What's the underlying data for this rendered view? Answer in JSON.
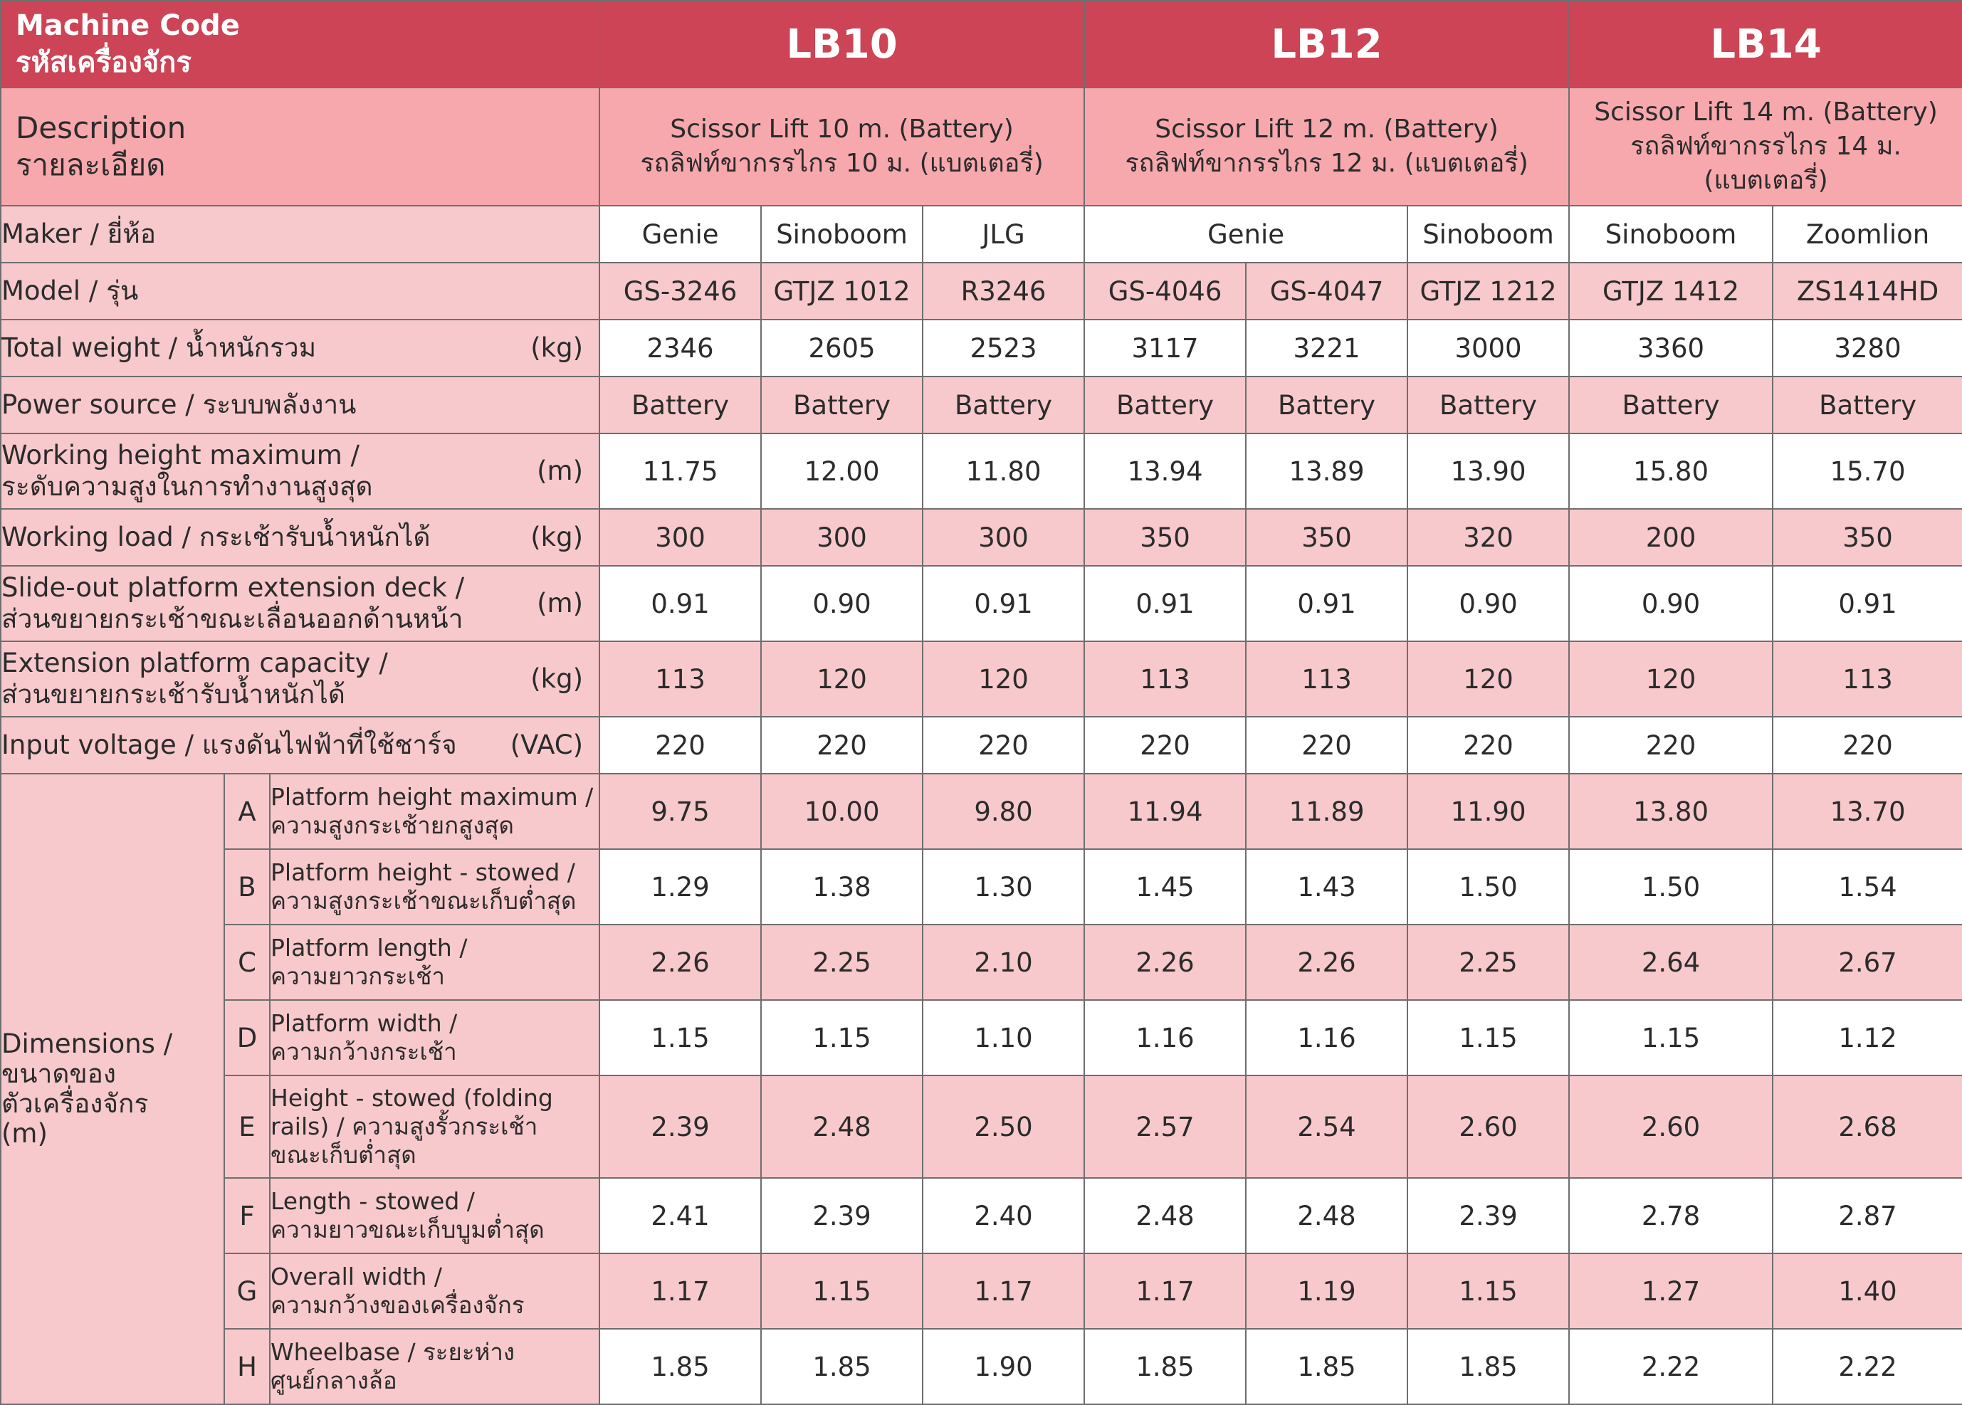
{
  "header": {
    "machine_code_label": [
      "Machine Code",
      "รหัสเครื่องจักร"
    ],
    "groups": [
      "LB10",
      "LB12",
      "LB14"
    ]
  },
  "description": {
    "label": [
      "Description",
      "รายละเอียด"
    ],
    "values": [
      [
        "Scissor Lift 10 m. (Battery)",
        "รถลิฟท์ขากรรไกร 10 ม. (แบตเตอรี่)"
      ],
      [
        "Scissor Lift 12 m. (Battery)",
        "รถลิฟท์ขากรรไกร 12 ม. (แบตเตอรี่)"
      ],
      [
        "Scissor Lift 14 m. (Battery)",
        "รถลิฟท์ขากรรไกร 14 ม.",
        "(แบตเตอรี่)"
      ]
    ]
  },
  "maker": {
    "label": "Maker / ยี่ห้อ",
    "values": [
      "Genie",
      "Sinoboom",
      "JLG",
      "Genie",
      "Sinoboom",
      "Sinoboom",
      "Zoomlion"
    ]
  },
  "model": {
    "label": "Model / รุ่น",
    "values": [
      "GS-3246",
      "GTJZ 1012",
      "R3246",
      "GS-4046",
      "GS-4047",
      "GTJZ 1212",
      "GTJZ 1412",
      "ZS1414HD"
    ]
  },
  "total_weight": {
    "label": "Total weight / น้ำหนักรวม",
    "unit": "(kg)",
    "values": [
      "2346",
      "2605",
      "2523",
      "3117",
      "3221",
      "3000",
      "3360",
      "3280"
    ]
  },
  "power_source": {
    "label": "Power source / ระบบพลังงาน",
    "values": [
      "Battery",
      "Battery",
      "Battery",
      "Battery",
      "Battery",
      "Battery",
      "Battery",
      "Battery"
    ]
  },
  "working_height": {
    "label": [
      "Working height maximum /",
      "ระดับความสูงในการทำงานสูงสุด"
    ],
    "unit": "(m)",
    "values": [
      "11.75",
      "12.00",
      "11.80",
      "13.94",
      "13.89",
      "13.90",
      "15.80",
      "15.70"
    ]
  },
  "working_load": {
    "label": "Working load / กระเช้ารับน้ำหนักได้",
    "unit": "(kg)",
    "values": [
      "300",
      "300",
      "300",
      "350",
      "350",
      "320",
      "200",
      "350"
    ]
  },
  "slide_out": {
    "label": [
      "Slide-out platform extension deck /",
      "ส่วนขยายกระเช้าขณะเลื่อนออกด้านหน้า"
    ],
    "unit": "(m)",
    "values": [
      "0.91",
      "0.90",
      "0.91",
      "0.91",
      "0.91",
      "0.90",
      "0.90",
      "0.91"
    ]
  },
  "extension_capacity": {
    "label": [
      "Extension platform capacity /",
      "ส่วนขยายกระเช้ารับน้ำหนักได้"
    ],
    "unit": "(kg)",
    "values": [
      "113",
      "120",
      "120",
      "113",
      "113",
      "120",
      "120",
      "113"
    ]
  },
  "input_voltage": {
    "label": "Input voltage / แรงดันไฟฟ้าที่ใช้ชาร์จ",
    "unit": "(VAC)",
    "values": [
      "220",
      "220",
      "220",
      "220",
      "220",
      "220",
      "220",
      "220"
    ]
  },
  "dimensions": {
    "label": [
      "Dimensions /",
      "ขนาดของ",
      "ตัวเครื่องจักร",
      "(m)"
    ],
    "rows": [
      {
        "letter": "A",
        "label": [
          "Platform height maximum /",
          " ความสูงกระเช้ายกสูงสุด"
        ],
        "values": [
          "9.75",
          "10.00",
          "9.80",
          "11.94",
          "11.89",
          "11.90",
          "13.80",
          "13.70"
        ]
      },
      {
        "letter": "B",
        "label": [
          "Platform height - stowed /",
          "ความสูงกระเช้าขณะเก็บต่ำสุด"
        ],
        "values": [
          "1.29",
          "1.38",
          "1.30",
          "1.45",
          "1.43",
          "1.50",
          "1.50",
          "1.54"
        ]
      },
      {
        "letter": "C",
        "label": [
          "Platform length  /",
          "ความยาวกระเช้า"
        ],
        "values": [
          "2.26",
          "2.25",
          "2.10",
          "2.26",
          "2.26",
          "2.25",
          "2.64",
          "2.67"
        ]
      },
      {
        "letter": "D",
        "label": [
          "Platform width /",
          "ความกว้างกระเช้า"
        ],
        "values": [
          "1.15",
          "1.15",
          "1.10",
          "1.16",
          "1.16",
          "1.15",
          "1.15",
          "1.12"
        ]
      },
      {
        "letter": "E",
        "label": [
          "Height - stowed (folding",
          "rails) / ความสูงรั้วกระเช้า",
          "ขณะเก็บต่ำสุด"
        ],
        "values": [
          "2.39",
          "2.48",
          "2.50",
          "2.57",
          "2.54",
          "2.60",
          "2.60",
          "2.68"
        ]
      },
      {
        "letter": "F",
        "label": [
          "Length - stowed /",
          "ความยาวขณะเก็บบูมต่ำสุด"
        ],
        "values": [
          "2.41",
          "2.39",
          "2.40",
          "2.48",
          "2.48",
          "2.39",
          "2.78",
          "2.87"
        ]
      },
      {
        "letter": "G",
        "label": [
          "Overall width /",
          "ความกว้างของเครื่องจักร"
        ],
        "values": [
          "1.17",
          "1.15",
          "1.17",
          "1.17",
          "1.19",
          "1.15",
          "1.27",
          "1.40"
        ]
      },
      {
        "letter": "H",
        "label": [
          "Wheelbase /  ระยะห่าง",
          "ศูนย์กลางล้อ"
        ],
        "values": [
          "1.85",
          "1.85",
          "1.90",
          "1.85",
          "1.85",
          "1.85",
          "2.22",
          "2.22"
        ]
      }
    ]
  }
}
